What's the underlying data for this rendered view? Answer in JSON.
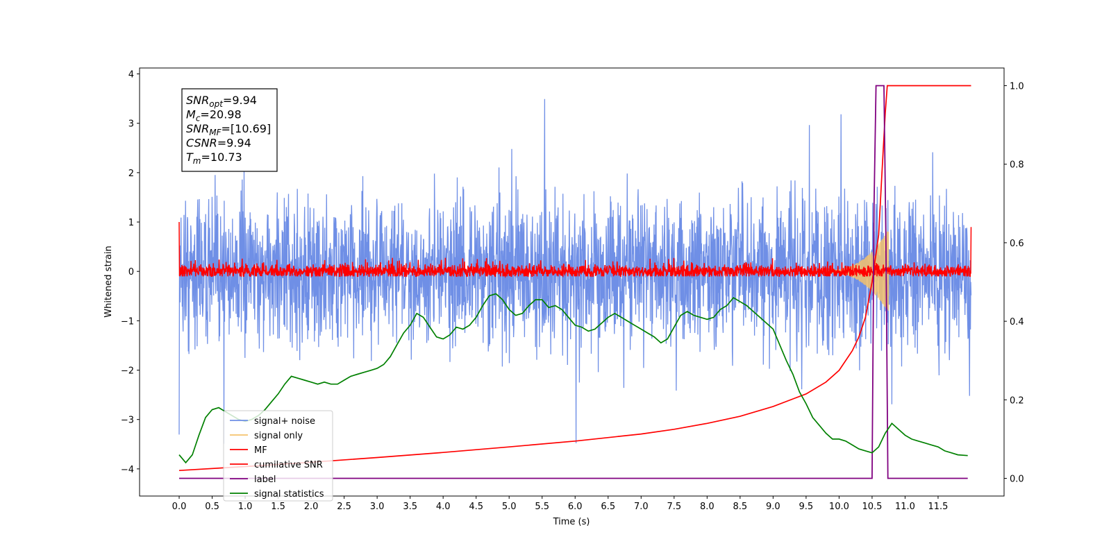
{
  "chart_data": {
    "type": "line",
    "xlabel": "Time (s)",
    "ylabel": "Whitened strain",
    "xlim": [
      -0.6,
      12.5
    ],
    "ylim": [
      -4.55,
      4.12
    ],
    "y2lim": [
      -0.045,
      1.045
    ],
    "xticks": [
      "0.0",
      "0.5",
      "1.0",
      "1.5",
      "2.0",
      "2.5",
      "3.0",
      "3.5",
      "4.0",
      "4.5",
      "5.0",
      "5.5",
      "6.0",
      "6.5",
      "7.0",
      "7.5",
      "8.0",
      "8.5",
      "9.0",
      "9.5",
      "10.0",
      "10.5",
      "11.0",
      "11.5"
    ],
    "yticks": [
      "4",
      "3",
      "2",
      "1",
      "0",
      "−1",
      "−2",
      "−3",
      "−4"
    ],
    "y2ticks": [
      "1.0",
      "0.8",
      "0.6",
      "0.4",
      "0.2",
      "0.0"
    ],
    "legend": {
      "position": "lower-left",
      "entries": [
        {
          "label": "signal+ noise",
          "color": "#6f8fe6"
        },
        {
          "label": "signal only",
          "color": "#f5c26b"
        },
        {
          "label": "MF",
          "color": "#ff0000"
        },
        {
          "label": "cumilative SNR",
          "color": "#ff0000"
        },
        {
          "label": "label",
          "color": "#800080"
        },
        {
          "label": "signal statistics",
          "color": "#008000"
        }
      ]
    },
    "annotation": [
      {
        "var": "SNR",
        "sub": "opt",
        "val": "=9.94"
      },
      {
        "var": "M",
        "sub": "c",
        "val": "=20.98"
      },
      {
        "var": "SNR",
        "sub": "MF",
        "val": "=[10.69]"
      },
      {
        "var": "CSNR",
        "sub": "",
        "val": "=9.94"
      },
      {
        "var": "T",
        "sub": "m",
        "val": "=10.73"
      }
    ],
    "series": [
      {
        "name": "signal+ noise",
        "color": "#6f8fe6",
        "axis": "left",
        "kind": "noise",
        "t_range": [
          0,
          12
        ],
        "spread": 0.75,
        "envelope": [
          -2.5,
          2.2
        ],
        "spike_max": 3.6,
        "spike_min": -3.6
      },
      {
        "name": "signal only",
        "color": "#f5c26b",
        "axis": "left",
        "kind": "chirp",
        "t_range": [
          9.6,
          10.75
        ],
        "peak_amplitude": 0.85
      },
      {
        "name": "MF",
        "color": "#ff0000",
        "axis": "left",
        "kind": "noise",
        "t_range": [
          0,
          12
        ],
        "spread": 0.07,
        "envelope": [
          -0.1,
          0.28
        ],
        "start_value": 1.0,
        "end_value": 0.9
      },
      {
        "name": "cumilative SNR",
        "color": "#ff0000",
        "axis": "right",
        "points": [
          [
            0,
            0.02
          ],
          [
            1,
            0.03
          ],
          [
            2,
            0.041
          ],
          [
            3,
            0.053
          ],
          [
            4,
            0.066
          ],
          [
            5,
            0.08
          ],
          [
            6,
            0.095
          ],
          [
            7,
            0.113
          ],
          [
            7.5,
            0.125
          ],
          [
            8,
            0.14
          ],
          [
            8.5,
            0.158
          ],
          [
            9,
            0.183
          ],
          [
            9.5,
            0.215
          ],
          [
            9.8,
            0.245
          ],
          [
            10,
            0.275
          ],
          [
            10.2,
            0.325
          ],
          [
            10.3,
            0.36
          ],
          [
            10.4,
            0.41
          ],
          [
            10.5,
            0.5
          ],
          [
            10.6,
            0.62
          ],
          [
            10.65,
            0.78
          ],
          [
            10.7,
            0.93
          ],
          [
            10.73,
            1.0
          ],
          [
            12,
            1.0
          ]
        ]
      },
      {
        "name": "label",
        "color": "#800080",
        "axis": "right",
        "points": [
          [
            0,
            0
          ],
          [
            10.5,
            0
          ],
          [
            10.53,
            0.7
          ],
          [
            10.56,
            1.0
          ],
          [
            10.68,
            1.0
          ],
          [
            10.71,
            0.6
          ],
          [
            10.74,
            0
          ],
          [
            11.95,
            0
          ]
        ]
      },
      {
        "name": "signal statistics",
        "color": "#008000",
        "axis": "right",
        "points": [
          [
            0,
            0.06
          ],
          [
            0.1,
            0.04
          ],
          [
            0.2,
            0.06
          ],
          [
            0.3,
            0.11
          ],
          [
            0.4,
            0.155
          ],
          [
            0.5,
            0.175
          ],
          [
            0.6,
            0.18
          ],
          [
            0.7,
            0.17
          ],
          [
            0.8,
            0.16
          ],
          [
            0.9,
            0.15
          ],
          [
            1.0,
            0.145
          ],
          [
            1.1,
            0.15
          ],
          [
            1.2,
            0.16
          ],
          [
            1.3,
            0.175
          ],
          [
            1.4,
            0.195
          ],
          [
            1.5,
            0.215
          ],
          [
            1.6,
            0.24
          ],
          [
            1.7,
            0.26
          ],
          [
            1.8,
            0.255
          ],
          [
            1.9,
            0.25
          ],
          [
            2.0,
            0.245
          ],
          [
            2.1,
            0.24
          ],
          [
            2.2,
            0.245
          ],
          [
            2.3,
            0.24
          ],
          [
            2.4,
            0.24
          ],
          [
            2.5,
            0.25
          ],
          [
            2.6,
            0.26
          ],
          [
            2.7,
            0.265
          ],
          [
            2.8,
            0.27
          ],
          [
            2.9,
            0.275
          ],
          [
            3.0,
            0.28
          ],
          [
            3.1,
            0.29
          ],
          [
            3.2,
            0.31
          ],
          [
            3.3,
            0.34
          ],
          [
            3.4,
            0.37
          ],
          [
            3.5,
            0.39
          ],
          [
            3.6,
            0.42
          ],
          [
            3.7,
            0.41
          ],
          [
            3.8,
            0.385
          ],
          [
            3.9,
            0.36
          ],
          [
            4.0,
            0.355
          ],
          [
            4.1,
            0.365
          ],
          [
            4.2,
            0.385
          ],
          [
            4.3,
            0.38
          ],
          [
            4.4,
            0.39
          ],
          [
            4.5,
            0.41
          ],
          [
            4.6,
            0.44
          ],
          [
            4.7,
            0.465
          ],
          [
            4.8,
            0.47
          ],
          [
            4.9,
            0.455
          ],
          [
            5.0,
            0.43
          ],
          [
            5.1,
            0.415
          ],
          [
            5.2,
            0.42
          ],
          [
            5.3,
            0.44
          ],
          [
            5.4,
            0.455
          ],
          [
            5.5,
            0.455
          ],
          [
            5.6,
            0.435
          ],
          [
            5.7,
            0.44
          ],
          [
            5.8,
            0.43
          ],
          [
            5.9,
            0.41
          ],
          [
            6.0,
            0.39
          ],
          [
            6.1,
            0.385
          ],
          [
            6.2,
            0.375
          ],
          [
            6.3,
            0.38
          ],
          [
            6.4,
            0.395
          ],
          [
            6.5,
            0.41
          ],
          [
            6.6,
            0.42
          ],
          [
            6.7,
            0.41
          ],
          [
            6.8,
            0.4
          ],
          [
            6.9,
            0.39
          ],
          [
            7.0,
            0.38
          ],
          [
            7.1,
            0.37
          ],
          [
            7.2,
            0.36
          ],
          [
            7.3,
            0.345
          ],
          [
            7.4,
            0.355
          ],
          [
            7.5,
            0.385
          ],
          [
            7.6,
            0.415
          ],
          [
            7.7,
            0.425
          ],
          [
            7.8,
            0.415
          ],
          [
            7.9,
            0.41
          ],
          [
            8.0,
            0.405
          ],
          [
            8.1,
            0.41
          ],
          [
            8.2,
            0.43
          ],
          [
            8.3,
            0.44
          ],
          [
            8.4,
            0.46
          ],
          [
            8.5,
            0.45
          ],
          [
            8.6,
            0.44
          ],
          [
            8.7,
            0.425
          ],
          [
            8.8,
            0.41
          ],
          [
            8.9,
            0.395
          ],
          [
            9.0,
            0.38
          ],
          [
            9.1,
            0.34
          ],
          [
            9.2,
            0.3
          ],
          [
            9.3,
            0.265
          ],
          [
            9.4,
            0.22
          ],
          [
            9.5,
            0.19
          ],
          [
            9.6,
            0.155
          ],
          [
            9.7,
            0.135
          ],
          [
            9.8,
            0.115
          ],
          [
            9.9,
            0.1
          ],
          [
            10.0,
            0.1
          ],
          [
            10.1,
            0.095
          ],
          [
            10.2,
            0.085
          ],
          [
            10.3,
            0.075
          ],
          [
            10.4,
            0.07
          ],
          [
            10.5,
            0.065
          ],
          [
            10.6,
            0.08
          ],
          [
            10.7,
            0.115
          ],
          [
            10.8,
            0.14
          ],
          [
            10.9,
            0.125
          ],
          [
            11.0,
            0.11
          ],
          [
            11.1,
            0.1
          ],
          [
            11.2,
            0.095
          ],
          [
            11.3,
            0.09
          ],
          [
            11.4,
            0.085
          ],
          [
            11.5,
            0.08
          ],
          [
            11.6,
            0.07
          ],
          [
            11.7,
            0.065
          ],
          [
            11.8,
            0.06
          ],
          [
            11.95,
            0.058
          ]
        ]
      }
    ]
  }
}
